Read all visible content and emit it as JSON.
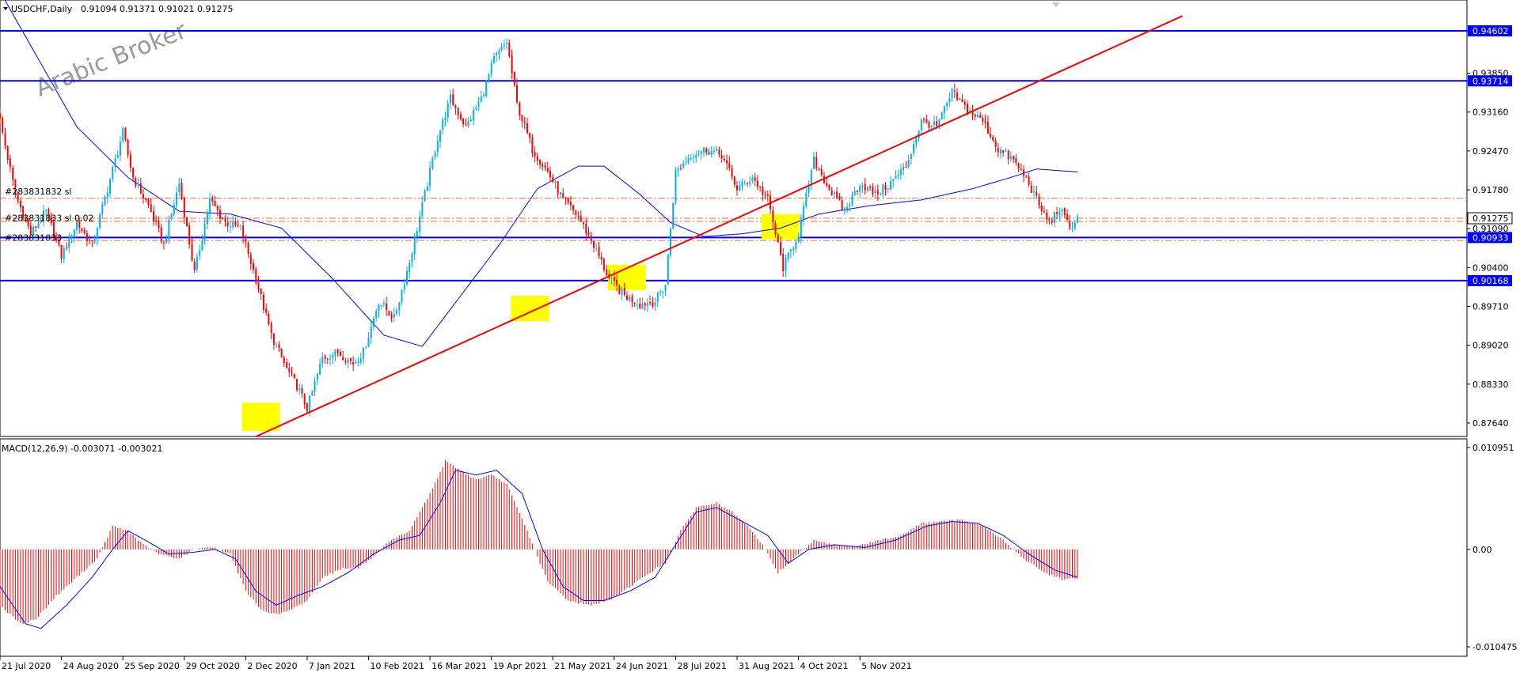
{
  "header": {
    "symbol": "USDCHF,Daily",
    "ohlc": "0.91094 0.91371 0.91021 0.91275"
  },
  "watermark": "Arabic Broker",
  "chart_data": [
    {
      "type": "candlestick",
      "title": "USDCHF,Daily",
      "ylim": [
        0.8735,
        0.9505
      ],
      "y_ticks": [
        "0.94602",
        "0.93850",
        "0.93714",
        "0.93160",
        "0.92470",
        "0.91780",
        "0.91275",
        "0.91090",
        "0.90933",
        "0.90400",
        "0.90168",
        "0.89710",
        "0.89020",
        "0.88330",
        "0.87640"
      ],
      "x_ticks": [
        "21 Jul 2020",
        "24 Aug 2020",
        "25 Sep 2020",
        "29 Oct 2020",
        "2 Dec 2020",
        "7 Jan 2021",
        "10 Feb 2021",
        "16 Mar 2021",
        "19 Apr 2021",
        "21 May 2021",
        "24 Jun 2021",
        "28 Jul 2021",
        "31 Aug 2021",
        "4 Oct 2021",
        "5 Nov 2021"
      ],
      "close_anchors": [
        [
          0,
          0.93
        ],
        [
          6,
          0.917
        ],
        [
          12,
          0.91
        ],
        [
          18,
          0.914
        ],
        [
          24,
          0.906
        ],
        [
          30,
          0.912
        ],
        [
          36,
          0.908
        ],
        [
          42,
          0.918
        ],
        [
          48,
          0.928
        ],
        [
          52,
          0.92
        ],
        [
          58,
          0.915
        ],
        [
          64,
          0.908
        ],
        [
          70,
          0.919
        ],
        [
          76,
          0.903
        ],
        [
          82,
          0.916
        ],
        [
          88,
          0.912
        ],
        [
          94,
          0.911
        ],
        [
          100,
          0.902
        ],
        [
          106,
          0.892
        ],
        [
          112,
          0.886
        ],
        [
          116,
          0.883
        ],
        [
          120,
          0.879
        ],
        [
          126,
          0.888
        ],
        [
          132,
          0.889
        ],
        [
          138,
          0.887
        ],
        [
          142,
          0.889
        ],
        [
          148,
          0.898
        ],
        [
          154,
          0.895
        ],
        [
          160,
          0.905
        ],
        [
          166,
          0.917
        ],
        [
          171,
          0.927
        ],
        [
          176,
          0.934
        ],
        [
          182,
          0.929
        ],
        [
          188,
          0.934
        ],
        [
          193,
          0.941
        ],
        [
          198,
          0.944
        ],
        [
          202,
          0.933
        ],
        [
          208,
          0.925
        ],
        [
          214,
          0.921
        ],
        [
          220,
          0.916
        ],
        [
          226,
          0.913
        ],
        [
          232,
          0.908
        ],
        [
          238,
          0.902
        ],
        [
          244,
          0.899
        ],
        [
          250,
          0.8975
        ],
        [
          256,
          0.898
        ],
        [
          260,
          0.901
        ],
        [
          264,
          0.921
        ],
        [
          270,
          0.924
        ],
        [
          276,
          0.925
        ],
        [
          282,
          0.924
        ],
        [
          288,
          0.918
        ],
        [
          294,
          0.92
        ],
        [
          300,
          0.916
        ],
        [
          306,
          0.904
        ],
        [
          312,
          0.91
        ],
        [
          318,
          0.923
        ],
        [
          324,
          0.918
        ],
        [
          330,
          0.914
        ],
        [
          336,
          0.919
        ],
        [
          342,
          0.917
        ],
        [
          348,
          0.919
        ],
        [
          354,
          0.922
        ],
        [
          360,
          0.93
        ],
        [
          366,
          0.929
        ],
        [
          372,
          0.935
        ],
        [
          378,
          0.932
        ],
        [
          384,
          0.93
        ],
        [
          390,
          0.925
        ],
        [
          396,
          0.923
        ],
        [
          402,
          0.919
        ],
        [
          406,
          0.915
        ],
        [
          410,
          0.912
        ],
        [
          414,
          0.9145
        ],
        [
          418,
          0.911
        ],
        [
          421,
          0.9128
        ]
      ],
      "ma_anchors": [
        [
          0,
          0.953
        ],
        [
          30,
          0.929
        ],
        [
          50,
          0.92
        ],
        [
          70,
          0.914
        ],
        [
          90,
          0.9135
        ],
        [
          110,
          0.911
        ],
        [
          130,
          0.902
        ],
        [
          150,
          0.892
        ],
        [
          165,
          0.89
        ],
        [
          180,
          0.899
        ],
        [
          195,
          0.908
        ],
        [
          210,
          0.918
        ],
        [
          226,
          0.922
        ],
        [
          236,
          0.922
        ],
        [
          250,
          0.917
        ],
        [
          262,
          0.912
        ],
        [
          275,
          0.9095
        ],
        [
          290,
          0.91
        ],
        [
          305,
          0.911
        ],
        [
          320,
          0.9135
        ],
        [
          340,
          0.915
        ],
        [
          360,
          0.916
        ],
        [
          380,
          0.918
        ],
        [
          395,
          0.92
        ],
        [
          405,
          0.9215
        ],
        [
          420,
          0.921
        ]
      ],
      "horizontal_levels": [
        {
          "value": "0.94602",
          "price": 0.94602,
          "color": "#0000ff"
        },
        {
          "value": "0.93714",
          "price": 0.93714,
          "color": "#0000ff"
        },
        {
          "value": "0.90933",
          "price": 0.90933,
          "color": "#0000ff"
        },
        {
          "value": "0.90168",
          "price": 0.90168,
          "color": "#0000ff"
        }
      ],
      "dashed_levels": [
        0.9163,
        0.91275,
        0.9122,
        0.9088
      ],
      "current_price": {
        "value": "0.91275",
        "price": 0.91275
      },
      "order_labels": [
        {
          "text": "#283831832 sl",
          "price": 0.9175
        },
        {
          "text": "#283831833 sl 0.02",
          "price": 0.9128
        },
        {
          "text": "#283831833",
          "price": 0.9093
        }
      ],
      "trendline": {
        "from": [
          100,
          0.874
        ],
        "to": [
          420,
          0.94
        ],
        "color": "#ff0000"
      },
      "highlight_zones": [
        {
          "bar": 102,
          "low": 0.875,
          "high": 0.88
        },
        {
          "bar": 207,
          "low": 0.8945,
          "high": 0.899
        },
        {
          "bar": 245,
          "low": 0.9,
          "high": 0.9045
        },
        {
          "bar": 305,
          "low": 0.909,
          "high": 0.9135
        }
      ],
      "colors": {
        "up": "#00b0f0",
        "down": "#ff0000",
        "ma": "#0000ff",
        "level": "#0000ff",
        "trend": "#ff0000",
        "dashed": "#ff6633",
        "highlight": "#ffff00"
      }
    },
    {
      "type": "bar",
      "title": "MACD(12,26,9) -0.003071 -0.003021",
      "ylim": [
        -0.010475,
        0.010951
      ],
      "y_ticks": [
        "0.010951",
        "0.00",
        "-0.010475"
      ],
      "hist_anchors": [
        [
          0,
          -0.006
        ],
        [
          8,
          -0.008
        ],
        [
          14,
          -0.0075
        ],
        [
          22,
          -0.005
        ],
        [
          30,
          -0.003
        ],
        [
          38,
          -0.001
        ],
        [
          44,
          0.0025
        ],
        [
          50,
          0.002
        ],
        [
          56,
          0.0005
        ],
        [
          62,
          -0.0005
        ],
        [
          70,
          -0.001
        ],
        [
          76,
          0.0
        ],
        [
          82,
          0.0003
        ],
        [
          90,
          -0.0005
        ],
        [
          96,
          -0.0045
        ],
        [
          102,
          -0.0065
        ],
        [
          108,
          -0.007
        ],
        [
          114,
          -0.0065
        ],
        [
          120,
          -0.0055
        ],
        [
          126,
          -0.003
        ],
        [
          134,
          -0.002
        ],
        [
          140,
          -0.002
        ],
        [
          146,
          -0.0008
        ],
        [
          152,
          0.0008
        ],
        [
          160,
          0.002
        ],
        [
          168,
          0.006
        ],
        [
          174,
          0.0095
        ],
        [
          180,
          0.0085
        ],
        [
          186,
          0.0075
        ],
        [
          192,
          0.008
        ],
        [
          198,
          0.007
        ],
        [
          206,
          0.002
        ],
        [
          214,
          -0.0035
        ],
        [
          222,
          -0.0055
        ],
        [
          230,
          -0.006
        ],
        [
          238,
          -0.0055
        ],
        [
          246,
          -0.004
        ],
        [
          254,
          -0.0025
        ],
        [
          260,
          -0.0015
        ],
        [
          266,
          0.002
        ],
        [
          272,
          0.0045
        ],
        [
          280,
          0.005
        ],
        [
          286,
          0.004
        ],
        [
          292,
          0.0025
        ],
        [
          298,
          0.0005
        ],
        [
          304,
          -0.0025
        ],
        [
          310,
          -0.001
        ],
        [
          318,
          0.001
        ],
        [
          326,
          0.0005
        ],
        [
          334,
          0.0003
        ],
        [
          344,
          0.001
        ],
        [
          352,
          0.0015
        ],
        [
          360,
          0.0028
        ],
        [
          368,
          0.003
        ],
        [
          376,
          0.0032
        ],
        [
          384,
          0.0025
        ],
        [
          392,
          0.001
        ],
        [
          400,
          -0.001
        ],
        [
          408,
          -0.0025
        ],
        [
          415,
          -0.0032
        ],
        [
          421,
          -0.0031
        ]
      ],
      "signal_anchors": [
        [
          0,
          -0.004
        ],
        [
          10,
          -0.008
        ],
        [
          16,
          -0.0085
        ],
        [
          26,
          -0.006
        ],
        [
          36,
          -0.003
        ],
        [
          44,
          0.0
        ],
        [
          50,
          0.002
        ],
        [
          58,
          0.0008
        ],
        [
          66,
          -0.0005
        ],
        [
          76,
          -0.0003
        ],
        [
          84,
          0.0
        ],
        [
          92,
          -0.001
        ],
        [
          100,
          -0.0045
        ],
        [
          108,
          -0.006
        ],
        [
          116,
          -0.005
        ],
        [
          126,
          -0.004
        ],
        [
          136,
          -0.0025
        ],
        [
          146,
          -0.0005
        ],
        [
          156,
          0.001
        ],
        [
          164,
          0.0015
        ],
        [
          172,
          0.005
        ],
        [
          178,
          0.0085
        ],
        [
          186,
          0.008
        ],
        [
          194,
          0.0085
        ],
        [
          204,
          0.006
        ],
        [
          212,
          0.0
        ],
        [
          220,
          -0.004
        ],
        [
          228,
          -0.0055
        ],
        [
          236,
          -0.0055
        ],
        [
          246,
          -0.0045
        ],
        [
          256,
          -0.003
        ],
        [
          264,
          0.0005
        ],
        [
          272,
          0.004
        ],
        [
          280,
          0.0045
        ],
        [
          290,
          0.003
        ],
        [
          300,
          0.0015
        ],
        [
          308,
          -0.0015
        ],
        [
          316,
          0.0
        ],
        [
          326,
          0.0005
        ],
        [
          338,
          0.0002
        ],
        [
          350,
          0.001
        ],
        [
          362,
          0.0025
        ],
        [
          372,
          0.003
        ],
        [
          382,
          0.0028
        ],
        [
          392,
          0.0015
        ],
        [
          402,
          -0.0005
        ],
        [
          412,
          -0.0022
        ],
        [
          421,
          -0.003
        ]
      ],
      "colors": {
        "hist": "#ff0000",
        "signal": "#0000ff",
        "current": "#ff3333"
      }
    }
  ]
}
